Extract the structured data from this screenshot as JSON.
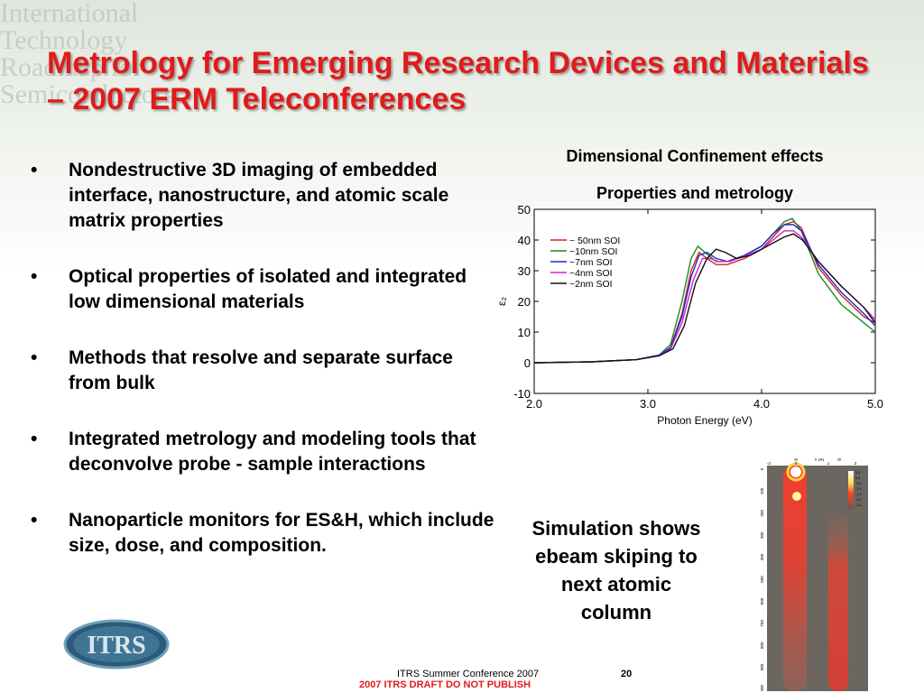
{
  "slide": {
    "title": "Metrology for Emerging Research Devices and Materials – 2007 ERM Teleconferences",
    "bullet_symbol": "•",
    "bullets": [
      "Nondestructive 3D imaging of embedded interface, nanostructure, and atomic scale matrix properties",
      "Optical properties of isolated and integrated low dimensional materials",
      "Methods that resolve and separate surface from bulk",
      "Integrated metrology and modeling tools that deconvolve probe - sample interactions",
      "Nanoparticle monitors for ES&H, which include size, dose, and composition."
    ],
    "chart_heading_1": "Dimensional Confinement effects",
    "chart_heading_2": "Properties and metrology",
    "simulation_caption": "Simulation shows ebeam skiping to next atomic column",
    "footer_conference": "ITRS Summer Conference 2007",
    "page_number": "20",
    "footer_draft": "2007 ITRS DRAFT DO NOT PUBLISH",
    "logo_text": "ITRS"
  },
  "watermark": {
    "lines": [
      "International",
      "Technology",
      "Roadmap for",
      "Semiconductors"
    ]
  },
  "chart_data": {
    "type": "line",
    "xlabel": "Photon Energy (eV)",
    "ylabel": "ε₂",
    "xlim": [
      2.0,
      5.0
    ],
    "ylim": [
      -10,
      50
    ],
    "x_ticks": [
      "2.0",
      "3.0",
      "4.0",
      "5.0"
    ],
    "y_ticks": [
      "-10",
      "0",
      "10",
      "20",
      "30",
      "40",
      "50"
    ],
    "legend_position": "top-left",
    "series": [
      {
        "name": "~ 50nm SOI",
        "color": "#d62020",
        "points": [
          [
            2.0,
            0
          ],
          [
            2.5,
            0.3
          ],
          [
            2.9,
            1
          ],
          [
            3.1,
            2.5
          ],
          [
            3.2,
            5
          ],
          [
            3.3,
            16
          ],
          [
            3.38,
            30
          ],
          [
            3.45,
            36
          ],
          [
            3.52,
            34
          ],
          [
            3.6,
            32
          ],
          [
            3.7,
            32
          ],
          [
            3.85,
            34
          ],
          [
            4.0,
            37
          ],
          [
            4.1,
            41
          ],
          [
            4.2,
            45
          ],
          [
            4.28,
            46
          ],
          [
            4.35,
            44
          ],
          [
            4.5,
            31
          ],
          [
            4.7,
            22
          ],
          [
            4.9,
            15
          ],
          [
            5.0,
            13
          ]
        ]
      },
      {
        "name": "~10nm SOI",
        "color": "#1a8a1a",
        "points": [
          [
            2.0,
            0
          ],
          [
            2.5,
            0.3
          ],
          [
            2.9,
            1
          ],
          [
            3.1,
            2.5
          ],
          [
            3.2,
            6
          ],
          [
            3.3,
            20
          ],
          [
            3.38,
            34
          ],
          [
            3.44,
            38
          ],
          [
            3.5,
            36
          ],
          [
            3.6,
            33
          ],
          [
            3.7,
            33
          ],
          [
            3.85,
            35
          ],
          [
            4.0,
            38
          ],
          [
            4.1,
            42
          ],
          [
            4.2,
            46
          ],
          [
            4.27,
            47
          ],
          [
            4.35,
            43
          ],
          [
            4.5,
            29
          ],
          [
            4.7,
            19
          ],
          [
            4.9,
            13
          ],
          [
            5.0,
            10
          ]
        ]
      },
      {
        "name": "~7nm SOI",
        "color": "#1a2ad0",
        "points": [
          [
            2.0,
            0
          ],
          [
            2.5,
            0.3
          ],
          [
            2.9,
            1
          ],
          [
            3.1,
            2.5
          ],
          [
            3.2,
            5
          ],
          [
            3.3,
            15
          ],
          [
            3.38,
            28
          ],
          [
            3.45,
            35
          ],
          [
            3.52,
            36
          ],
          [
            3.6,
            34
          ],
          [
            3.7,
            33
          ],
          [
            3.85,
            35
          ],
          [
            4.0,
            38
          ],
          [
            4.1,
            42
          ],
          [
            4.2,
            45
          ],
          [
            4.28,
            45
          ],
          [
            4.35,
            43
          ],
          [
            4.5,
            32
          ],
          [
            4.7,
            23
          ],
          [
            4.9,
            16
          ],
          [
            5.0,
            12
          ]
        ]
      },
      {
        "name": "~4nm SOI",
        "color": "#d020d0",
        "points": [
          [
            2.0,
            0
          ],
          [
            2.5,
            0.3
          ],
          [
            2.9,
            1
          ],
          [
            3.1,
            2.3
          ],
          [
            3.2,
            4.5
          ],
          [
            3.3,
            13
          ],
          [
            3.4,
            27
          ],
          [
            3.48,
            34
          ],
          [
            3.55,
            34
          ],
          [
            3.62,
            33
          ],
          [
            3.72,
            33
          ],
          [
            3.87,
            35
          ],
          [
            4.0,
            37
          ],
          [
            4.1,
            40
          ],
          [
            4.2,
            43
          ],
          [
            4.28,
            43
          ],
          [
            4.35,
            41
          ],
          [
            4.5,
            33
          ],
          [
            4.7,
            25
          ],
          [
            4.9,
            18
          ],
          [
            5.0,
            14
          ]
        ]
      },
      {
        "name": "~2nm SOI",
        "color": "#111111",
        "points": [
          [
            2.0,
            0
          ],
          [
            2.5,
            0.3
          ],
          [
            2.9,
            1
          ],
          [
            3.1,
            2.3
          ],
          [
            3.22,
            4.5
          ],
          [
            3.32,
            12
          ],
          [
            3.42,
            26
          ],
          [
            3.52,
            34
          ],
          [
            3.6,
            37
          ],
          [
            3.68,
            36
          ],
          [
            3.78,
            34
          ],
          [
            3.9,
            35
          ],
          [
            4.0,
            37
          ],
          [
            4.1,
            39
          ],
          [
            4.2,
            41
          ],
          [
            4.28,
            42
          ],
          [
            4.36,
            40
          ],
          [
            4.5,
            33
          ],
          [
            4.7,
            25
          ],
          [
            4.9,
            18
          ],
          [
            5.0,
            13
          ]
        ]
      }
    ]
  },
  "sim_figure": {
    "top_labels": [
      "Si",
      "x (Å)",
      "Si"
    ],
    "x_ticks": [
      "-2",
      "0",
      "1",
      "2"
    ],
    "y_ticks": [
      "0",
      "100",
      "200",
      "300",
      "400",
      "500",
      "600",
      "700",
      "800",
      "900",
      "1000"
    ],
    "colorbar_ticks": [
      "0.5",
      "0.0",
      "-0.5",
      "-1.0",
      "-1.5",
      "-2.0",
      "-2.5"
    ]
  }
}
